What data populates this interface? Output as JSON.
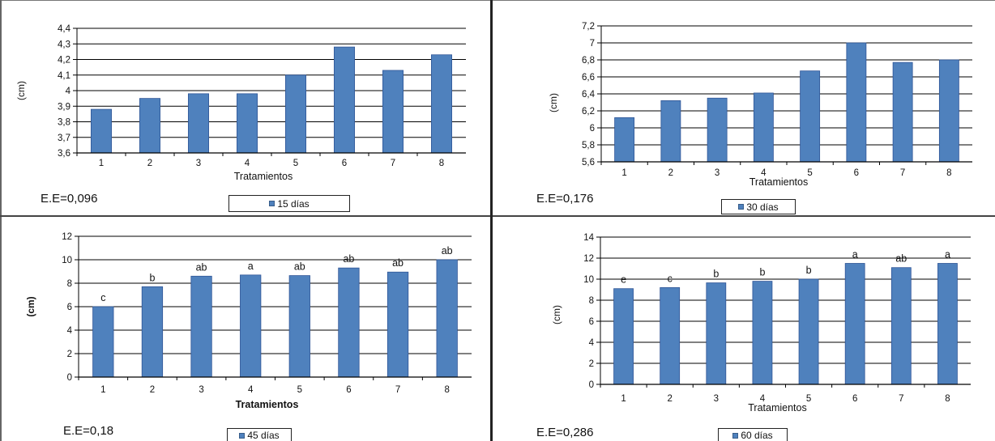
{
  "colors": {
    "bar_fill": "#4f81bd",
    "bar_stroke": "#2f5597",
    "grid": "#000000",
    "text": "#111111"
  },
  "chart_data": [
    {
      "type": "bar",
      "xlabel": "Tratamientos",
      "ylabel": "(cm)",
      "categories": [
        "1",
        "2",
        "3",
        "4",
        "5",
        "6",
        "7",
        "8"
      ],
      "series": [
        {
          "name": "15 días",
          "values": [
            3.88,
            3.95,
            3.98,
            3.98,
            4.1,
            4.28,
            4.13,
            4.23
          ]
        }
      ],
      "ylim": [
        3.6,
        4.4
      ],
      "yticks": [
        "3,6",
        "3,7",
        "3,8",
        "3,9",
        "4",
        "4,1",
        "4,2",
        "4,3",
        "4,4"
      ],
      "annotation": "E.E=0,096",
      "grid": true,
      "legend_position": "bottom"
    },
    {
      "type": "bar",
      "xlabel": "Tratamientos",
      "ylabel": "(cm)",
      "categories": [
        "1",
        "2",
        "3",
        "4",
        "5",
        "6",
        "7",
        "8"
      ],
      "series": [
        {
          "name": "30 días",
          "values": [
            6.12,
            6.32,
            6.35,
            6.41,
            6.67,
            7.0,
            6.77,
            6.8
          ]
        }
      ],
      "ylim": [
        5.6,
        7.2
      ],
      "yticks": [
        "5,6",
        "5,8",
        "6",
        "6,2",
        "6,4",
        "6,6",
        "6,8",
        "7",
        "7,2"
      ],
      "annotation": "E.E=0,176",
      "grid": true,
      "legend_position": "bottom"
    },
    {
      "type": "bar",
      "xlabel": "Tratamientos",
      "ylabel": "(cm)",
      "categories": [
        "1",
        "2",
        "3",
        "4",
        "5",
        "6",
        "7",
        "8"
      ],
      "series": [
        {
          "name": "45 días",
          "values": [
            6.0,
            7.7,
            8.6,
            8.7,
            8.65,
            9.3,
            8.95,
            10.0
          ]
        }
      ],
      "ylim": [
        0,
        12
      ],
      "yticks": [
        "0",
        "2",
        "4",
        "6",
        "8",
        "10",
        "12"
      ],
      "bar_labels": [
        "c",
        "b",
        "ab",
        "a",
        "ab",
        "ab",
        "ab",
        "ab"
      ],
      "annotation": "E.E=0,18",
      "grid": true,
      "legend_position": "bottom"
    },
    {
      "type": "bar",
      "xlabel": "Tratamientos",
      "ylabel": "(cm)",
      "categories": [
        "1",
        "2",
        "3",
        "4",
        "5",
        "6",
        "7",
        "8"
      ],
      "series": [
        {
          "name": "60 días",
          "values": [
            9.1,
            9.2,
            9.65,
            9.8,
            10.0,
            11.5,
            11.1,
            11.5
          ]
        }
      ],
      "ylim": [
        0,
        14
      ],
      "yticks": [
        "0",
        "2",
        "4",
        "6",
        "8",
        "10",
        "12",
        "14"
      ],
      "bar_labels": [
        "e",
        "c",
        "b",
        "b",
        "b",
        "a",
        "ab",
        "a"
      ],
      "annotation": "E.E=0,286",
      "grid": true,
      "legend_position": "bottom"
    }
  ]
}
